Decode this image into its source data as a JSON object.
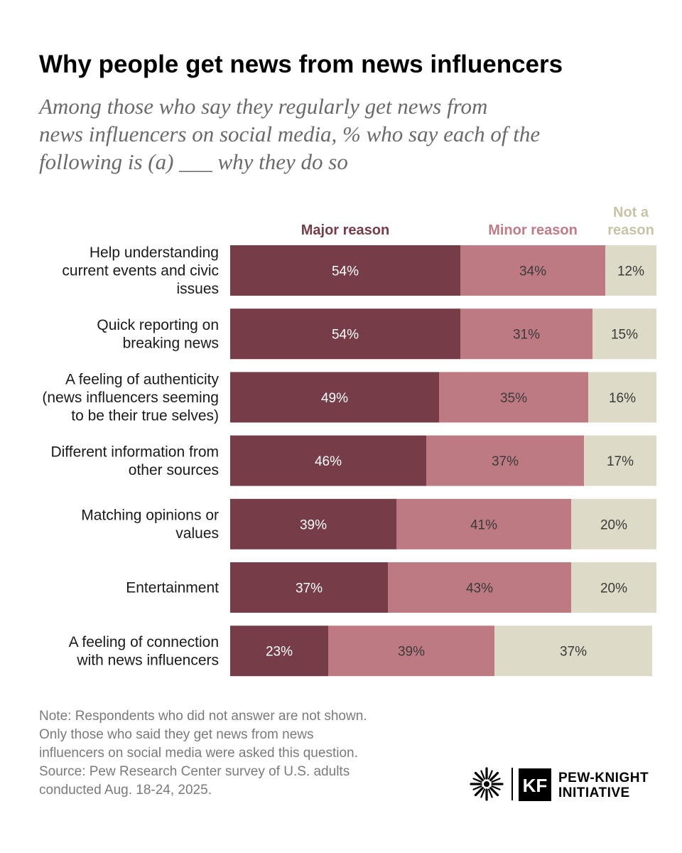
{
  "title": "Why people get news from news influencers",
  "subtitle_lines": [
    "Among those who say they regularly get news from",
    "news influencers on social media, % who say each of the",
    "following is (a) ___ why they do so"
  ],
  "colors": {
    "major": "#763d48",
    "minor": "#bd7a83",
    "not": "#dddac8",
    "legend_major": "#763d48",
    "legend_minor": "#c07b86",
    "legend_not": "#c9c3a5"
  },
  "chart_data": {
    "type": "bar",
    "orientation": "horizontal",
    "stacked": true,
    "series": [
      {
        "name": "Major reason",
        "values": [
          54,
          54,
          49,
          46,
          39,
          37,
          23
        ]
      },
      {
        "name": "Minor reason",
        "values": [
          34,
          31,
          35,
          37,
          41,
          43,
          39
        ]
      },
      {
        "name": "Not a reason",
        "values": [
          12,
          15,
          16,
          17,
          20,
          20,
          37
        ]
      }
    ],
    "categories": [
      [
        "Help understanding",
        "current events and civic",
        "issues"
      ],
      [
        "Quick reporting on",
        "breaking news"
      ],
      [
        "A feeling of authenticity",
        "(news influencers seeming",
        "to be their true selves)"
      ],
      [
        "Different information from",
        "other sources"
      ],
      [
        "Matching opinions or",
        "values"
      ],
      [
        "Entertainment"
      ],
      [
        "A feeling of connection",
        "with news influencers"
      ]
    ],
    "legend_labels": [
      [
        "Major reason"
      ],
      [
        "Minor reason"
      ],
      [
        "Not a",
        "reason"
      ]
    ],
    "value_suffix": "%",
    "xlim": [
      0,
      100
    ]
  },
  "note_lines": [
    "Note: Respondents who did not answer are not shown.",
    "Only those who said they get news from news",
    "influencers on social media were asked this question.",
    "Source: Pew Research Center survey of U.S. adults",
    "conducted Aug. 18-24, 2025."
  ],
  "logo": {
    "kf": "KF",
    "lines": [
      "PEW-KNIGHT",
      "INITIATIVE"
    ]
  }
}
